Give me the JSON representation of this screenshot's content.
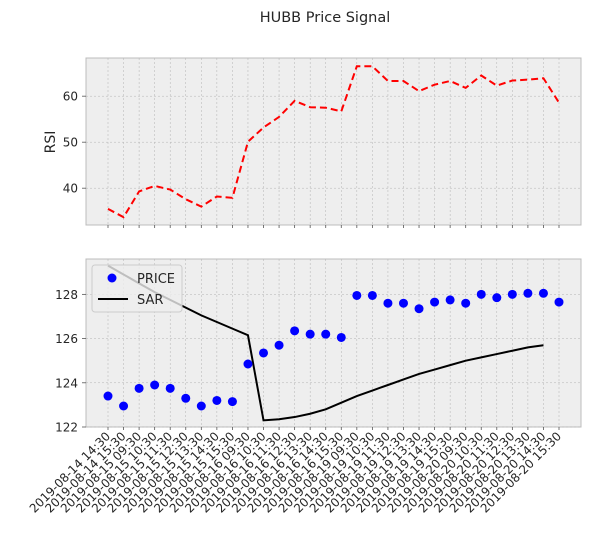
{
  "title": "HUBB Price Signal",
  "chart_data": [
    {
      "type": "line",
      "ylabel": "RSI",
      "ylim": [
        32,
        68.3
      ],
      "yticks": [
        40,
        50,
        60
      ],
      "grid": true,
      "series": [
        {
          "name": "",
          "color": "#ff0000",
          "style": "dashed",
          "values": [
            35.5,
            33.7,
            39.3,
            40.5,
            39.7,
            37.6,
            36.0,
            38.2,
            37.9,
            50.1,
            53.2,
            55.5,
            59.0,
            57.6,
            57.5,
            56.7,
            66.5,
            66.5,
            63.3,
            63.3,
            61.1,
            62.5,
            63.3,
            61.8,
            64.5,
            62.3,
            63.4,
            63.6,
            63.9,
            58.6
          ]
        }
      ]
    },
    {
      "type": "scatter",
      "ylim": [
        122,
        129.6
      ],
      "yticks": [
        122,
        124,
        126,
        128
      ],
      "grid": true,
      "legend": "top-left",
      "categories": [
        "2019-08-14 14:30",
        "2019-08-14 15:30",
        "2019-08-15 09:30",
        "2019-08-15 10:30",
        "2019-08-15 11:30",
        "2019-08-15 12:30",
        "2019-08-15 13:30",
        "2019-08-15 14:30",
        "2019-08-15 15:30",
        "2019-08-16 09:30",
        "2019-08-16 10:30",
        "2019-08-16 11:30",
        "2019-08-16 12:30",
        "2019-08-16 13:30",
        "2019-08-16 14:30",
        "2019-08-16 15:30",
        "2019-08-19 09:30",
        "2019-08-19 10:30",
        "2019-08-19 11:30",
        "2019-08-19 12:30",
        "2019-08-19 13:30",
        "2019-08-19 14:30",
        "2019-08-19 15:30",
        "2019-08-20 09:30",
        "2019-08-20 10:30",
        "2019-08-20 11:30",
        "2019-08-20 12:30",
        "2019-08-20 13:30",
        "2019-08-20 14:30",
        "2019-08-20 15:30"
      ],
      "series": [
        {
          "name": "PRICE",
          "color": "#0000ff",
          "marker": "circle",
          "values": [
            123.4,
            122.95,
            123.75,
            123.9,
            123.75,
            123.3,
            122.95,
            123.2,
            123.15,
            124.85,
            125.35,
            125.7,
            126.35,
            126.2,
            126.2,
            126.05,
            127.95,
            127.95,
            127.6,
            127.6,
            127.35,
            127.65,
            127.75,
            127.6,
            128.0,
            127.85,
            128.0,
            128.05,
            128.05,
            127.65
          ]
        },
        {
          "name": "SAR",
          "color": "#000000",
          "style": "solid",
          "values": [
            129.3,
            128.9,
            128.5,
            128.1,
            127.75,
            127.4,
            127.05,
            126.75,
            126.45,
            126.15,
            122.3,
            122.35,
            122.45,
            122.6,
            122.8,
            123.1,
            123.4,
            123.65,
            123.9,
            124.15,
            124.4,
            124.6,
            124.8,
            125.0,
            125.15,
            125.3,
            125.45,
            125.6,
            125.7
          ]
        }
      ]
    }
  ]
}
